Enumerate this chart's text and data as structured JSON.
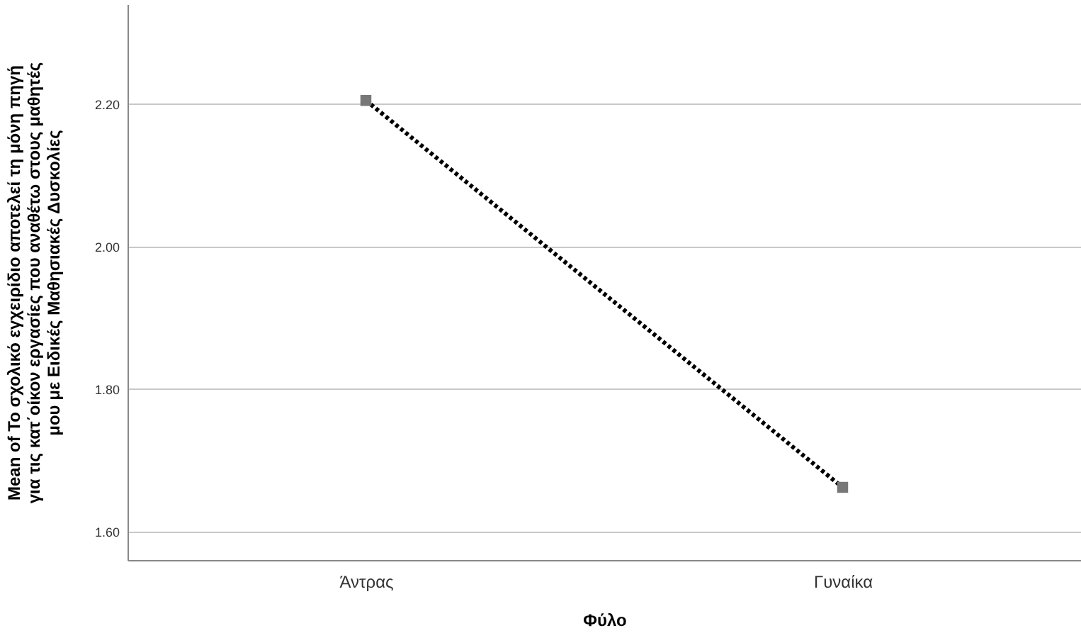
{
  "chart_data": {
    "type": "line",
    "xlabel": "Φύλο",
    "ylabel": "Mean of Το σχολικό εγχειρίδιο αποτελεί τη μόνη πηγή για τις κατ΄οίκον εργασίες που αναθέτω στους μαθητές μου με Ειδικές Μαθησιακές Δυσκολίες",
    "categories": [
      "Άντρας",
      "Γυναίκα"
    ],
    "series": [
      {
        "color": "#000000",
        "values": [
          2.205,
          1.662
        ]
      }
    ],
    "ylim": [
      1.56,
      2.34
    ],
    "yticks": [
      {
        "value": 1.6,
        "label": "1.60"
      },
      {
        "value": 1.8,
        "label": "1.80"
      },
      {
        "value": 2.0,
        "label": "2.00"
      },
      {
        "value": 2.2,
        "label": "2.20"
      }
    ],
    "grid": "y",
    "marker": "square",
    "line_style": "dotted"
  }
}
